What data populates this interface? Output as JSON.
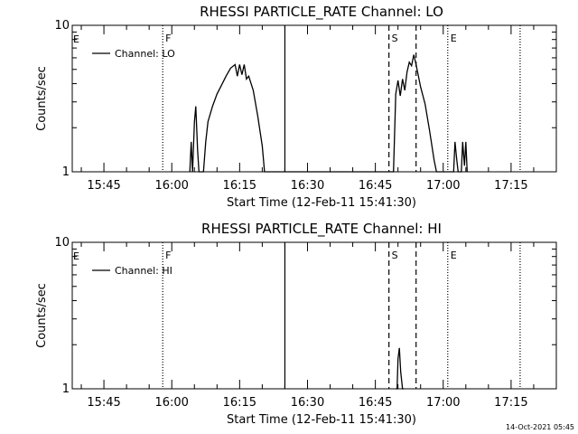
{
  "footer_timestamp": "14-Oct-2021 05:45",
  "chart_data": [
    {
      "type": "line",
      "title": "RHESSI PARTICLE_RATE Channel: LO",
      "xlabel": "Start Time (12-Feb-11 15:41:30)",
      "ylabel": "Counts/sec",
      "y_scale": "log",
      "ylim": [
        1,
        10
      ],
      "yticks": [
        {
          "value": 1,
          "label": "1"
        },
        {
          "value": 10,
          "label": "10"
        }
      ],
      "xlim": [
        "15:38",
        "17:25"
      ],
      "xticks": [
        "15:45",
        "16:00",
        "16:15",
        "16:30",
        "16:45",
        "17:00",
        "17:15"
      ],
      "legend": {
        "position": "top-left",
        "entries": [
          "Channel: LO"
        ]
      },
      "series": [
        {
          "name": "Channel: LO",
          "x": [
            "16:04",
            "16:04.3",
            "16:04.6",
            "16:05",
            "16:05.3",
            "16:05.7",
            "16:06",
            "16:07",
            "16:07.5",
            "16:08",
            "16:09",
            "16:10",
            "16:11",
            "16:12",
            "16:13",
            "16:14",
            "16:14.5",
            "16:15",
            "16:15.5",
            "16:16",
            "16:16.5",
            "16:17",
            "16:18",
            "16:19",
            "16:20",
            "16:20.5",
            "16:49",
            "16:49.5",
            "16:50",
            "16:50.5",
            "16:51",
            "16:51.5",
            "16:52",
            "16:52.5",
            "16:53",
            "16:53.5",
            "16:54",
            "16:55",
            "16:56",
            "16:57",
            "16:58",
            "16:58.5",
            "17:02.3",
            "17:02.6",
            "17:03",
            "17:03.3",
            "17:04",
            "17:04.3",
            "17:04.7",
            "17:05",
            "17:05.3"
          ],
          "y": [
            1,
            1.6,
            1,
            2.2,
            2.8,
            1.4,
            1,
            1,
            1.6,
            2.2,
            2.8,
            3.4,
            3.9,
            4.5,
            5.1,
            5.4,
            4.5,
            5.4,
            4.6,
            5.4,
            4.3,
            4.5,
            3.6,
            2.4,
            1.5,
            1,
            1,
            3.4,
            4.2,
            3.3,
            4.3,
            3.6,
            4.8,
            5.6,
            5.3,
            6.3,
            5.4,
            3.8,
            2.9,
            1.9,
            1.2,
            1,
            1,
            1.6,
            1.2,
            1,
            1,
            1.6,
            1.1,
            1.6,
            1
          ]
        }
      ],
      "markers": [
        {
          "time": "15:58",
          "label": "F",
          "style": "dotted"
        },
        {
          "time": "16:25",
          "label": "",
          "style": "solid"
        },
        {
          "time": "16:48",
          "label": "S",
          "style": "dashed"
        },
        {
          "time": "16:54",
          "label": "",
          "style": "dashed"
        },
        {
          "time": "17:01",
          "label": "E",
          "style": "dotted"
        },
        {
          "time": "17:17",
          "label": "",
          "style": "dotted"
        }
      ],
      "left_label": "E"
    },
    {
      "type": "line",
      "title": "RHESSI PARTICLE_RATE Channel: HI",
      "xlabel": "Start Time (12-Feb-11 15:41:30)",
      "ylabel": "Counts/sec",
      "y_scale": "log",
      "ylim": [
        1,
        10
      ],
      "yticks": [
        {
          "value": 1,
          "label": "1"
        },
        {
          "value": 10,
          "label": "10"
        }
      ],
      "xlim": [
        "15:38",
        "17:25"
      ],
      "xticks": [
        "15:45",
        "16:00",
        "16:15",
        "16:30",
        "16:45",
        "17:00",
        "17:15"
      ],
      "legend": {
        "position": "top-left",
        "entries": [
          "Channel: HI"
        ]
      },
      "series": [
        {
          "name": "Channel: HI",
          "x": [
            "16:49.5",
            "16:49.8",
            "16:50",
            "16:50.3",
            "16:50.6",
            "16:51",
            "16:51.3"
          ],
          "y": [
            1,
            1,
            1.6,
            1.9,
            1.3,
            1,
            1
          ]
        }
      ],
      "markers": [
        {
          "time": "15:58",
          "label": "F",
          "style": "dotted"
        },
        {
          "time": "16:25",
          "label": "",
          "style": "solid"
        },
        {
          "time": "16:48",
          "label": "S",
          "style": "dashed"
        },
        {
          "time": "16:54",
          "label": "",
          "style": "dashed"
        },
        {
          "time": "17:01",
          "label": "E",
          "style": "dotted"
        },
        {
          "time": "17:17",
          "label": "",
          "style": "dotted"
        }
      ],
      "left_label": "E"
    }
  ]
}
